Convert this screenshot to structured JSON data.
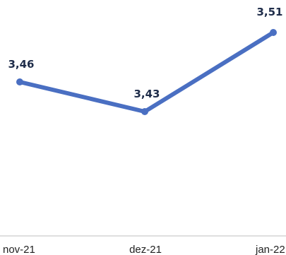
{
  "chart_data": {
    "type": "line",
    "categories": [
      "nov-21",
      "dez-21",
      "jan-22"
    ],
    "series": [
      {
        "values": [
          3.46,
          3.43,
          3.51
        ],
        "labels": [
          "3,46",
          "3,43",
          "3,51"
        ],
        "color": "#4a6fc2"
      }
    ],
    "title": "",
    "xlabel": "",
    "ylabel": "",
    "ylim": [
      3.36,
      3.52
    ],
    "grid": false,
    "legend": "none"
  },
  "colors": {
    "line": "#4a6fc2",
    "label_text": "#1f2d4a",
    "axis": "#bfbfbf"
  }
}
